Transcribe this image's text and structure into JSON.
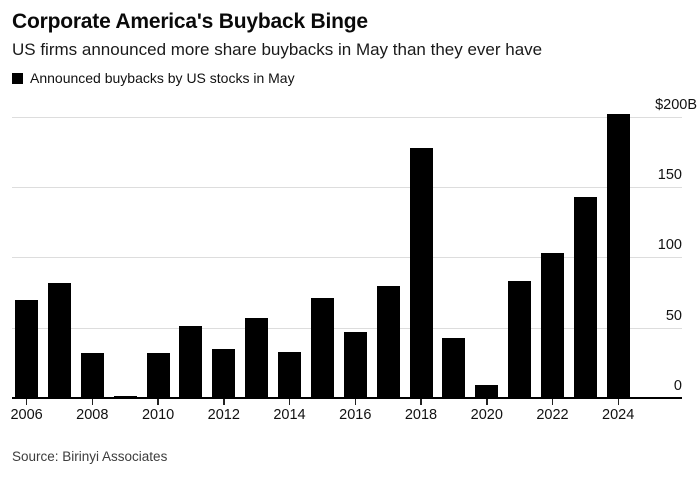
{
  "header": {
    "title": "Corporate America's Buyback Binge",
    "subtitle": "US firms announced more share buybacks in May than they ever have"
  },
  "legend": {
    "swatch_color": "#000000",
    "label": "Announced buybacks by US stocks in May"
  },
  "source": {
    "text": "Source: Birinyi Associates"
  },
  "colors": {
    "bar": "#000000",
    "grid": "#dddddd",
    "axis": "#000000",
    "background": "#ffffff",
    "source_text": "#3d3d3d"
  },
  "chart_data": {
    "type": "bar",
    "title": "Corporate America's Buyback Binge",
    "subtitle": "US firms announced more share buybacks in May than they ever have",
    "series_name": "Announced buybacks by US stocks in May",
    "unit": "$B",
    "categories": [
      2006,
      2007,
      2008,
      2009,
      2010,
      2011,
      2012,
      2013,
      2014,
      2015,
      2016,
      2017,
      2018,
      2019,
      2020,
      2021,
      2022,
      2023,
      2024
    ],
    "values": [
      70,
      82,
      32,
      1.5,
      32,
      51,
      35,
      57,
      33,
      71,
      47,
      80,
      178,
      43,
      9,
      83,
      103,
      143,
      202
    ],
    "xlabel": "",
    "ylabel": "",
    "ylim": [
      0,
      200
    ],
    "grid": true,
    "legend_position": "top-left",
    "y_axis": {
      "side": "right",
      "min": 0,
      "max": 200,
      "step": 50,
      "gridline_values": [
        50,
        100,
        150,
        200
      ],
      "tick_labels": [
        {
          "text": "$200B",
          "value": 200
        },
        {
          "text": "150",
          "value": 150
        },
        {
          "text": "100",
          "value": 100
        },
        {
          "text": "50",
          "value": 50
        },
        {
          "text": "0",
          "value": 0
        }
      ]
    },
    "x_axis": {
      "tick_labels": [
        "2006",
        "2008",
        "2010",
        "2012",
        "2014",
        "2016",
        "2018",
        "2020",
        "2022",
        "2024"
      ],
      "tick_years": [
        2006,
        2008,
        2010,
        2012,
        2014,
        2016,
        2018,
        2020,
        2022,
        2024
      ]
    }
  }
}
